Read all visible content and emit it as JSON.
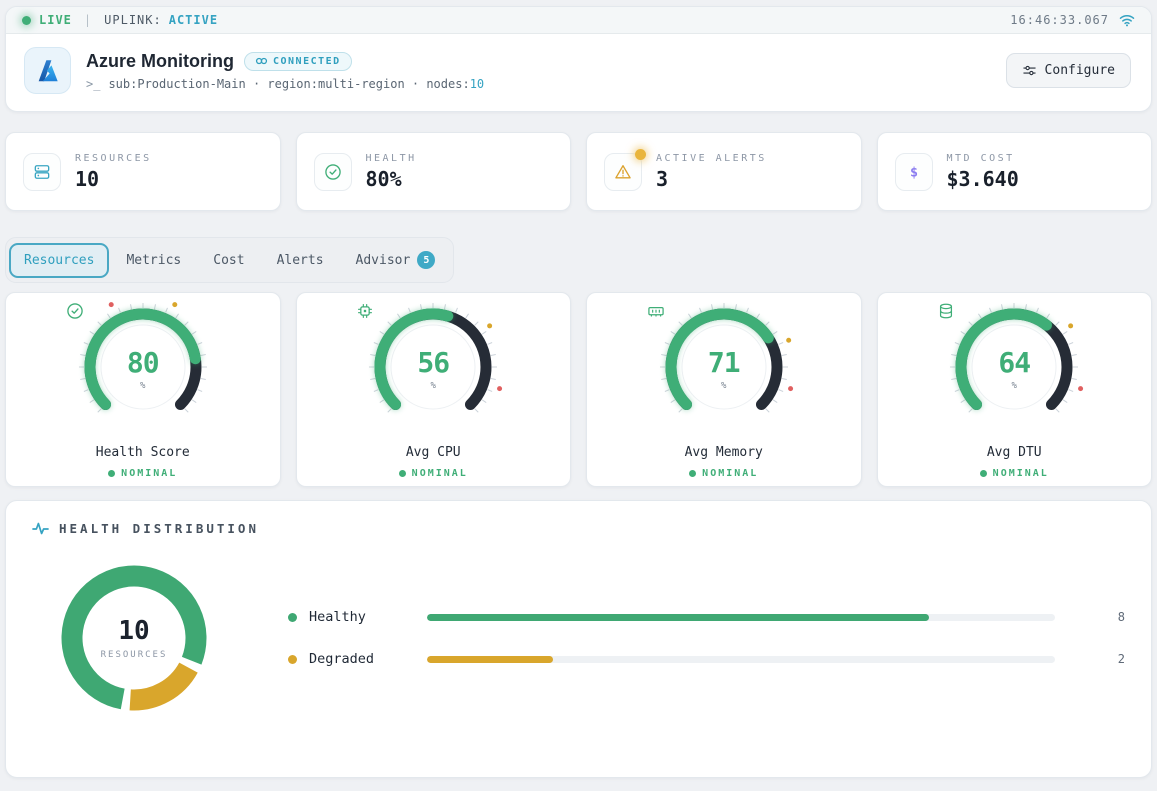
{
  "palette": {
    "green": "#3fae77",
    "amber": "#d9a62c",
    "red": "#e06060",
    "cyan": "#35a3c2",
    "purple": "#8b7cf0",
    "dark_arc": "#262c36",
    "tick": "#ccd3da"
  },
  "topbar": {
    "live": "LIVE",
    "separator": "|",
    "uplink_label": "UPLINK:",
    "uplink_value": "ACTIVE",
    "time": "16:46:33.067"
  },
  "header": {
    "title": "Azure Monitoring",
    "badge": "CONNECTED",
    "prompt": ">_",
    "meta": "sub:Production-Main · region:multi-region · nodes:",
    "nodes": "10",
    "configure_label": "Configure"
  },
  "stats": [
    {
      "label": "RESOURCES",
      "value": "10",
      "icon": "servers"
    },
    {
      "label": "HEALTH",
      "value": "80%",
      "icon": "check-circle"
    },
    {
      "label": "ACTIVE ALERTS",
      "value": "3",
      "icon": "warning-triangle"
    },
    {
      "label": "MTD COST",
      "value": "$3.640",
      "icon": "dollar"
    }
  ],
  "tabs": {
    "items": [
      {
        "label": "Resources",
        "active": true
      },
      {
        "label": "Metrics",
        "active": false
      },
      {
        "label": "Cost",
        "active": false
      },
      {
        "label": "Alerts",
        "active": false
      },
      {
        "label": "Advisor",
        "active": false,
        "badge": "5"
      }
    ]
  },
  "gauges": [
    {
      "label": "Health Score",
      "value": 80,
      "unit": "%",
      "status": "NOMINAL",
      "icon": "check-circle",
      "warn": 60,
      "crit": 40
    },
    {
      "label": "Avg CPU",
      "value": 56,
      "unit": "%",
      "status": "NOMINAL",
      "icon": "cpu",
      "warn": 70,
      "crit": 90
    },
    {
      "label": "Avg Memory",
      "value": 71,
      "unit": "%",
      "status": "NOMINAL",
      "icon": "memory",
      "warn": 75,
      "crit": 90
    },
    {
      "label": "Avg DTU",
      "value": 64,
      "unit": "%",
      "status": "NOMINAL",
      "icon": "database",
      "warn": 70,
      "crit": 90
    }
  ],
  "chart_data": {
    "type": "pie",
    "title": "HEALTH DISTRIBUTION",
    "total": "10",
    "total_label": "RESOURCES",
    "max": 10,
    "categories": [
      "Healthy",
      "Degraded"
    ],
    "values": [
      8,
      2
    ],
    "colors": [
      "#3fa873",
      "#d9a62c"
    ],
    "rows": [
      {
        "label": "Healthy",
        "value": 8,
        "color": "#3fa873"
      },
      {
        "label": "Degraded",
        "value": 2,
        "color": "#d9a62c"
      }
    ]
  }
}
